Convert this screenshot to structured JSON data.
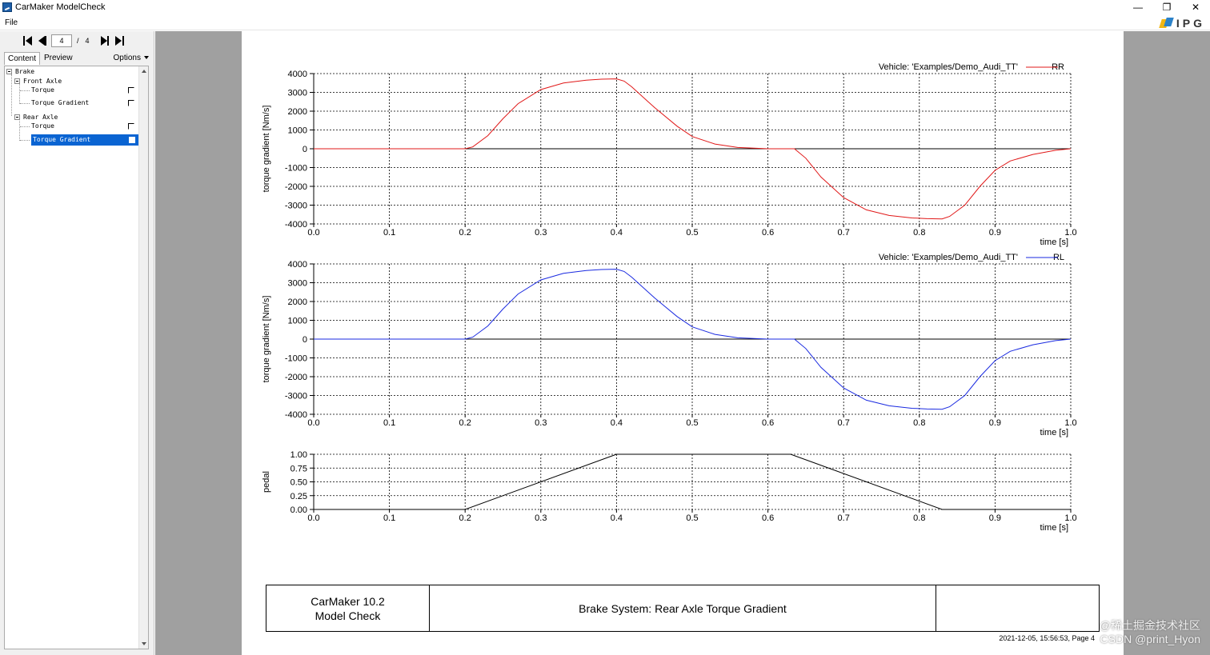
{
  "window": {
    "title": "CarMaker ModelCheck",
    "minimize_glyph": "—",
    "restore_glyph": "❐",
    "close_glyph": "✕"
  },
  "menu": {
    "file_label": "File",
    "logo_text": "IPG",
    "logo_colors": {
      "yellow": "#f3b712",
      "blue": "#2c82c9"
    }
  },
  "navigator": {
    "current_page": "4",
    "separator": "/",
    "total_pages": "4"
  },
  "tabs": {
    "content_label": "Content",
    "preview_label": "Preview",
    "options_label": "Options"
  },
  "tree": {
    "brake": "Brake",
    "front_axle": "Front Axle",
    "front_torque": "Torque",
    "front_torque_gradient": "Torque Gradient",
    "rear_axle": "Rear Axle",
    "rear_torque": "Torque",
    "rear_torque_gradient": "Torque Gradient",
    "selection_color": "#0a64d2"
  },
  "report": {
    "product_line1": "CarMaker 10.2",
    "product_line2": "Model Check",
    "report_title": "Brake System: Rear Axle Torque Gradient",
    "report_extra": "",
    "date_page": "2021-12-05, 15:56:53, Page 4"
  },
  "watermark": {
    "line1": "@稀土掘金技术社区",
    "line2": "CSDN @print_Hyon"
  },
  "chart_data": [
    {
      "type": "line",
      "ylabel": "torque gradient [Nm/s]",
      "xlabel": "time [s]",
      "legend_label": "Vehicle: 'Examples/Demo_Audi_TT'",
      "xlim": [
        0.0,
        1.0
      ],
      "ylim": [
        -4000,
        4000
      ],
      "x_ticks": [
        "0.0",
        "0.1",
        "0.2",
        "0.3",
        "0.4",
        "0.5",
        "0.6",
        "0.7",
        "0.8",
        "0.9",
        "1.0"
      ],
      "y_ticks": [
        "4000",
        "3000",
        "2000",
        "1000",
        "0",
        "-1000",
        "-2000",
        "-3000",
        "-4000"
      ],
      "grid": true,
      "legend_position": "top-right",
      "series": [
        {
          "name": "RR",
          "color": "#e01818",
          "x": [
            0.0,
            0.2,
            0.21,
            0.23,
            0.25,
            0.27,
            0.3,
            0.33,
            0.36,
            0.38,
            0.4,
            0.41,
            0.42,
            0.45,
            0.48,
            0.5,
            0.53,
            0.56,
            0.6,
            0.635,
            0.65,
            0.67,
            0.7,
            0.73,
            0.76,
            0.79,
            0.81,
            0.83,
            0.84,
            0.86,
            0.88,
            0.9,
            0.92,
            0.95,
            0.98,
            1.0
          ],
          "values": [
            0,
            0,
            100,
            700,
            1600,
            2400,
            3150,
            3500,
            3650,
            3700,
            3720,
            3600,
            3300,
            2200,
            1200,
            650,
            250,
            70,
            0,
            0,
            -500,
            -1500,
            -2600,
            -3250,
            -3550,
            -3680,
            -3720,
            -3730,
            -3600,
            -3000,
            -2000,
            -1150,
            -650,
            -300,
            -80,
            0
          ]
        },
        {
          "name": "RL",
          "color": "#1a2ae0",
          "x": [
            0.0,
            0.2,
            0.21,
            0.23,
            0.25,
            0.27,
            0.3,
            0.33,
            0.36,
            0.38,
            0.4,
            0.41,
            0.42,
            0.45,
            0.48,
            0.5,
            0.53,
            0.56,
            0.6,
            0.635,
            0.65,
            0.67,
            0.7,
            0.73,
            0.76,
            0.79,
            0.81,
            0.83,
            0.84,
            0.86,
            0.88,
            0.9,
            0.92,
            0.95,
            0.98,
            1.0
          ],
          "values": [
            0,
            0,
            100,
            700,
            1600,
            2400,
            3150,
            3500,
            3650,
            3700,
            3720,
            3600,
            3300,
            2200,
            1200,
            650,
            250,
            70,
            0,
            0,
            -500,
            -1500,
            -2600,
            -3250,
            -3550,
            -3680,
            -3720,
            -3730,
            -3600,
            -3000,
            -2000,
            -1150,
            -650,
            -300,
            -80,
            0
          ]
        }
      ]
    },
    {
      "type": "line",
      "ylabel": "pedal",
      "xlabel": "time [s]",
      "xlim": [
        0.0,
        1.0
      ],
      "ylim": [
        0.0,
        1.0
      ],
      "x_ticks": [
        "0.0",
        "0.1",
        "0.2",
        "0.3",
        "0.4",
        "0.5",
        "0.6",
        "0.7",
        "0.8",
        "0.9",
        "1.0"
      ],
      "y_ticks": [
        "1.00",
        "0.75",
        "0.50",
        "0.25",
        "0.00"
      ],
      "grid": true,
      "series": [
        {
          "name": "",
          "color": "#000000",
          "x": [
            0.0,
            0.2,
            0.4,
            0.63,
            0.83,
            1.0
          ],
          "values": [
            0,
            0,
            1,
            1,
            0,
            0
          ]
        }
      ]
    }
  ]
}
